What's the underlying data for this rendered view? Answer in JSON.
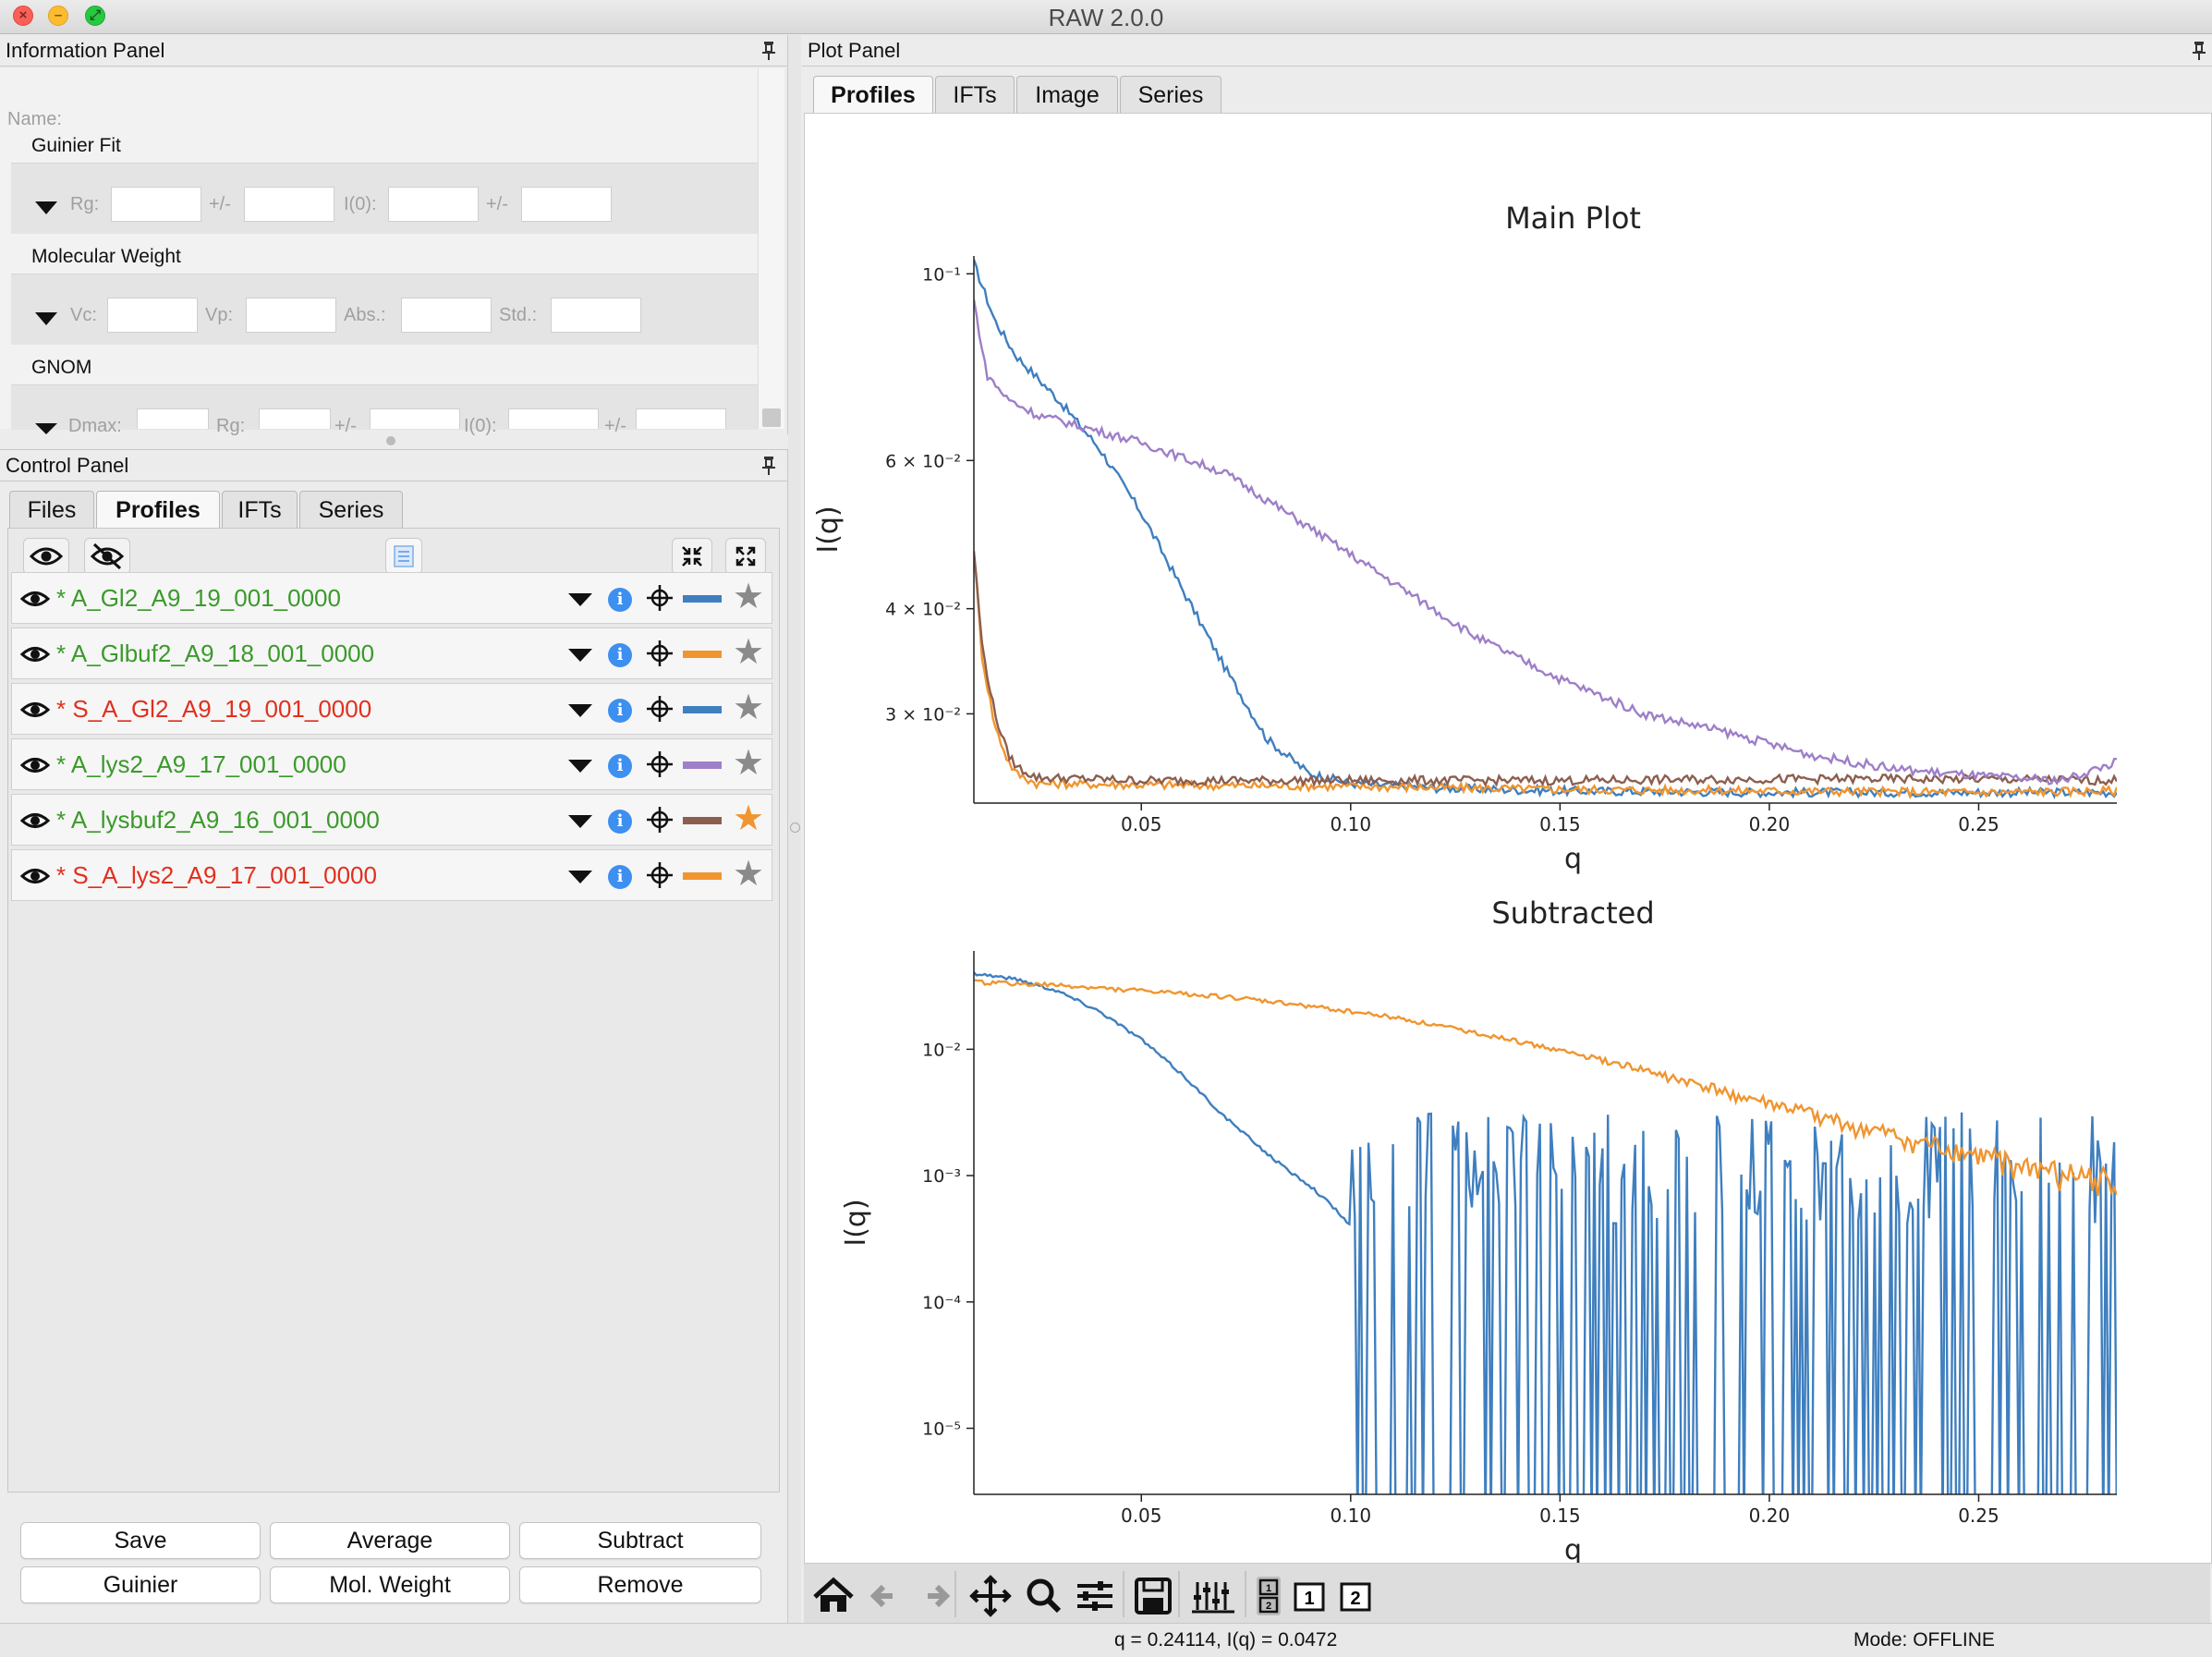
{
  "window": {
    "title": "RAW 2.0.0"
  },
  "info_panel": {
    "header": "Information Panel",
    "name_label": "Name:",
    "guinier": {
      "title": "Guinier Fit",
      "rg": "Rg:",
      "pm1": "+/-",
      "i0": "I(0):",
      "pm2": "+/-"
    },
    "mw": {
      "title": "Molecular Weight",
      "vc": "Vc:",
      "vp": "Vp:",
      "abs": "Abs.:",
      "std": "Std.:"
    },
    "gnom": {
      "title": "GNOM",
      "dmax": "Dmax:",
      "rg": "Rg:",
      "pm1": "+/-",
      "i0": "I(0):",
      "pm2": "+/-"
    }
  },
  "control_panel": {
    "header": "Control Panel",
    "tabs": [
      "Files",
      "Profiles",
      "IFTs",
      "Series"
    ],
    "active_tab": "Profiles",
    "profiles": [
      {
        "name": "* A_Gl2_A9_19_001_0000",
        "text_color": "#3a9a2a",
        "line_color": "#3f7fbf",
        "starred": false
      },
      {
        "name": "* A_Glbuf2_A9_18_001_0000",
        "text_color": "#3a9a2a",
        "line_color": "#f0952f",
        "starred": false
      },
      {
        "name": "* S_A_Gl2_A9_19_001_0000",
        "text_color": "#e0301e",
        "line_color": "#3f7fbf",
        "starred": false
      },
      {
        "name": "* A_lys2_A9_17_001_0000",
        "text_color": "#3a9a2a",
        "line_color": "#9e7fc8",
        "starred": false
      },
      {
        "name": "* A_lysbuf2_A9_16_001_0000",
        "text_color": "#3a9a2a",
        "line_color": "#8c5e4e",
        "starred": true
      },
      {
        "name": "* S_A_lys2_A9_17_001_0000",
        "text_color": "#e0301e",
        "line_color": "#f0952f",
        "starred": false
      }
    ],
    "buttons": [
      "Save",
      "Average",
      "Subtract",
      "Guinier",
      "Mol. Weight",
      "Remove"
    ]
  },
  "plot_panel": {
    "header": "Plot Panel",
    "tabs": [
      "Profiles",
      "IFTs",
      "Image",
      "Series"
    ],
    "active_tab": "Profiles"
  },
  "chart_data": [
    {
      "type": "line",
      "title": "Main Plot",
      "xlabel": "q",
      "ylabel": "I(q)",
      "yscale": "log",
      "xlim": [
        0.01,
        0.283
      ],
      "ylim": [
        0.0235,
        0.105
      ],
      "xticks": [
        "0.05",
        "0.10",
        "0.15",
        "0.20",
        "0.25"
      ],
      "yticks": [
        "10⁻¹",
        "6 × 10⁻²",
        "4 × 10⁻²",
        "3 × 10⁻²"
      ],
      "series": [
        {
          "color": "#3f7fbf",
          "x": [
            0.01,
            0.015,
            0.02,
            0.03,
            0.04,
            0.05,
            0.06,
            0.07,
            0.08,
            0.09,
            0.1,
            0.12,
            0.15,
            0.2,
            0.25,
            0.283
          ],
          "y": [
            0.103,
            0.088,
            0.08,
            0.071,
            0.062,
            0.052,
            0.042,
            0.034,
            0.028,
            0.0255,
            0.0248,
            0.0245,
            0.0243,
            0.0242,
            0.0242,
            0.0242
          ]
        },
        {
          "color": "#f0952f",
          "x": [
            0.01,
            0.012,
            0.015,
            0.018,
            0.02,
            0.025,
            0.05,
            0.1,
            0.15,
            0.2,
            0.25,
            0.283
          ],
          "y": [
            0.047,
            0.035,
            0.029,
            0.0265,
            0.0255,
            0.0248,
            0.0247,
            0.0246,
            0.0244,
            0.0243,
            0.0242,
            0.0243
          ]
        },
        {
          "color": "#8c5e4e",
          "x": [
            0.01,
            0.012,
            0.015,
            0.018,
            0.02,
            0.025,
            0.05,
            0.1,
            0.15,
            0.2,
            0.25,
            0.283
          ],
          "y": [
            0.047,
            0.036,
            0.03,
            0.027,
            0.026,
            0.0252,
            0.025,
            0.025,
            0.025,
            0.0251,
            0.0251,
            0.025
          ]
        },
        {
          "color": "#9e7fc8",
          "x": [
            0.01,
            0.013,
            0.018,
            0.025,
            0.035,
            0.05,
            0.07,
            0.09,
            0.11,
            0.13,
            0.15,
            0.17,
            0.19,
            0.21,
            0.23,
            0.25,
            0.27,
            0.283
          ],
          "y": [
            0.093,
            0.076,
            0.071,
            0.068,
            0.066,
            0.063,
            0.058,
            0.05,
            0.043,
            0.037,
            0.033,
            0.03,
            0.0285,
            0.0268,
            0.0258,
            0.0253,
            0.025,
            0.0263
          ]
        }
      ]
    },
    {
      "type": "line",
      "title": "Subtracted",
      "xlabel": "q",
      "ylabel": "I(q)",
      "yscale": "log",
      "xlim": [
        0.01,
        0.283
      ],
      "ylim": [
        3e-06,
        0.06
      ],
      "xticks": [
        "0.05",
        "0.10",
        "0.15",
        "0.20",
        "0.25"
      ],
      "yticks": [
        "10⁻²",
        "10⁻³",
        "10⁻⁴",
        "10⁻⁵"
      ],
      "series": [
        {
          "color": "#3f7fbf",
          "x": [
            0.01,
            0.02,
            0.03,
            0.04,
            0.05,
            0.06,
            0.07,
            0.08,
            0.085,
            0.09,
            0.095,
            0.1
          ],
          "y": [
            0.04,
            0.036,
            0.029,
            0.02,
            0.012,
            0.0062,
            0.0029,
            0.0015,
            0.0011,
            0.00085,
            0.0006,
            0.0004
          ]
        },
        {
          "color": "#f0952f",
          "x": [
            0.01,
            0.03,
            0.05,
            0.07,
            0.09,
            0.11,
            0.13,
            0.15,
            0.17,
            0.19,
            0.21,
            0.23,
            0.25,
            0.27,
            0.283
          ],
          "y": [
            0.034,
            0.032,
            0.029,
            0.026,
            0.022,
            0.018,
            0.0135,
            0.0098,
            0.0068,
            0.0045,
            0.003,
            0.002,
            0.0014,
            0.001,
            0.0009
          ]
        }
      ]
    }
  ],
  "status": {
    "coords": "q = 0.24114, I(q) = 0.0472",
    "mode": "Mode: OFFLINE"
  },
  "colors": {
    "accent_blue": "#3d8ff0",
    "star_gray": "#8a8a8a",
    "star_orange": "#f0952f"
  }
}
